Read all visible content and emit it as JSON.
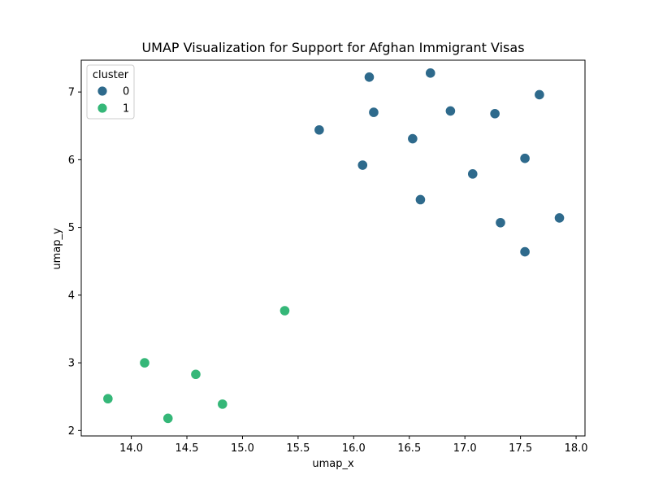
{
  "chart_data": {
    "type": "scatter",
    "title": "UMAP Visualization for Support for Afghan Immigrant Visas",
    "xlabel": "umap_x",
    "ylabel": "umap_y",
    "xlim": [
      13.55,
      18.08
    ],
    "ylim": [
      1.92,
      7.47
    ],
    "xticks": [
      "14.0",
      "14.5",
      "15.0",
      "15.5",
      "16.0",
      "16.5",
      "17.0",
      "17.5",
      "18.0"
    ],
    "yticks": [
      "2",
      "3",
      "4",
      "5",
      "6",
      "7"
    ],
    "grid": false,
    "legend": {
      "title": "cluster",
      "placement": "top-left",
      "entries": [
        "0",
        "1"
      ]
    },
    "series": [
      {
        "name": "0",
        "color": "#2e6a8c",
        "points": [
          {
            "x": 16.14,
            "y": 7.22
          },
          {
            "x": 16.69,
            "y": 7.28
          },
          {
            "x": 17.67,
            "y": 6.96
          },
          {
            "x": 16.18,
            "y": 6.7
          },
          {
            "x": 16.87,
            "y": 6.72
          },
          {
            "x": 17.27,
            "y": 6.68
          },
          {
            "x": 15.69,
            "y": 6.44
          },
          {
            "x": 16.53,
            "y": 6.31
          },
          {
            "x": 17.54,
            "y": 6.02
          },
          {
            "x": 16.08,
            "y": 5.92
          },
          {
            "x": 17.07,
            "y": 5.79
          },
          {
            "x": 16.6,
            "y": 5.41
          },
          {
            "x": 17.85,
            "y": 5.14
          },
          {
            "x": 17.32,
            "y": 5.07
          },
          {
            "x": 17.54,
            "y": 4.64
          }
        ]
      },
      {
        "name": "1",
        "color": "#35b778",
        "points": [
          {
            "x": 15.38,
            "y": 3.77
          },
          {
            "x": 14.12,
            "y": 3.0
          },
          {
            "x": 14.58,
            "y": 2.83
          },
          {
            "x": 13.79,
            "y": 2.47
          },
          {
            "x": 14.82,
            "y": 2.39
          },
          {
            "x": 14.33,
            "y": 2.18
          }
        ]
      }
    ]
  }
}
